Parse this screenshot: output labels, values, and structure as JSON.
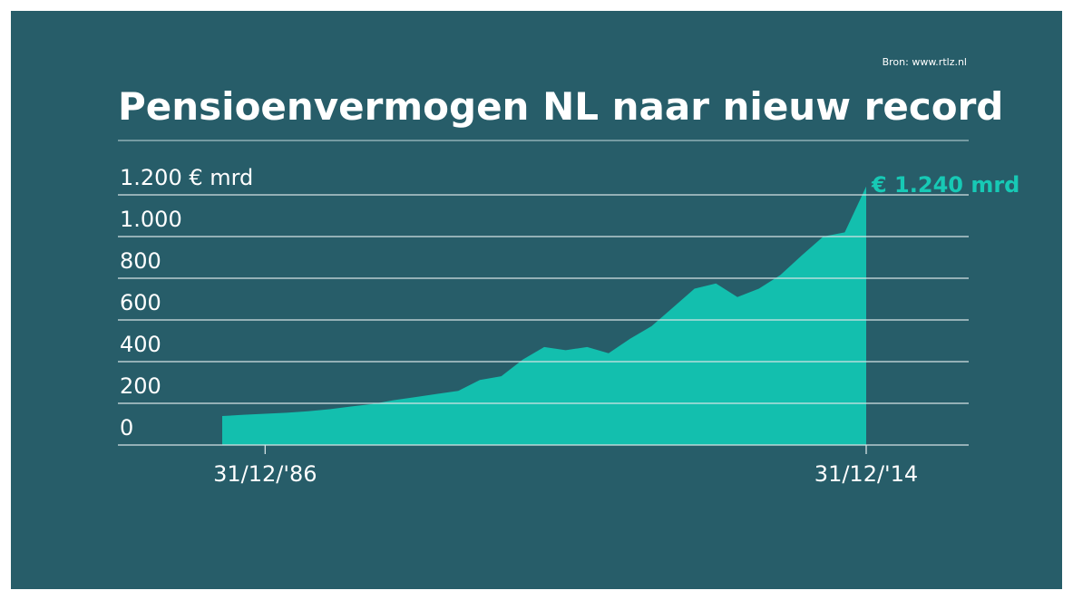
{
  "chart_data": {
    "type": "area",
    "source": "Bron: www.rtlz.nl",
    "title": "Pensioenvermogen NL naar nieuw record",
    "categories": [
      null,
      null,
      "31/12/'86",
      null,
      null,
      null,
      null,
      null,
      null,
      null,
      null,
      null,
      null,
      null,
      null,
      null,
      null,
      null,
      null,
      null,
      null,
      null,
      null,
      null,
      null,
      null,
      null,
      null,
      null,
      null,
      "31/12/'14"
    ],
    "values": [
      139,
      145,
      150,
      155,
      162,
      172,
      185,
      197,
      215,
      230,
      245,
      260,
      312,
      330,
      410,
      470,
      455,
      470,
      440,
      510,
      570,
      660,
      750,
      775,
      710,
      750,
      815,
      910,
      1000,
      1020,
      1240
    ],
    "value_labels": [
      null,
      null,
      null,
      null,
      null,
      null,
      null,
      null,
      null,
      null,
      null,
      null,
      null,
      null,
      null,
      null,
      null,
      null,
      null,
      null,
      null,
      null,
      null,
      null,
      null,
      null,
      null,
      null,
      null,
      null,
      "€ 1.240 mrd"
    ],
    "color": "#13bfae",
    "ylim": [
      0,
      1400
    ],
    "yticks": [
      0,
      200,
      400,
      600,
      800,
      {
        "value": 1000,
        "label": "1.000"
      },
      {
        "value": 1200,
        "label": "1.200 € mrd"
      }
    ],
    "grid": true
  }
}
